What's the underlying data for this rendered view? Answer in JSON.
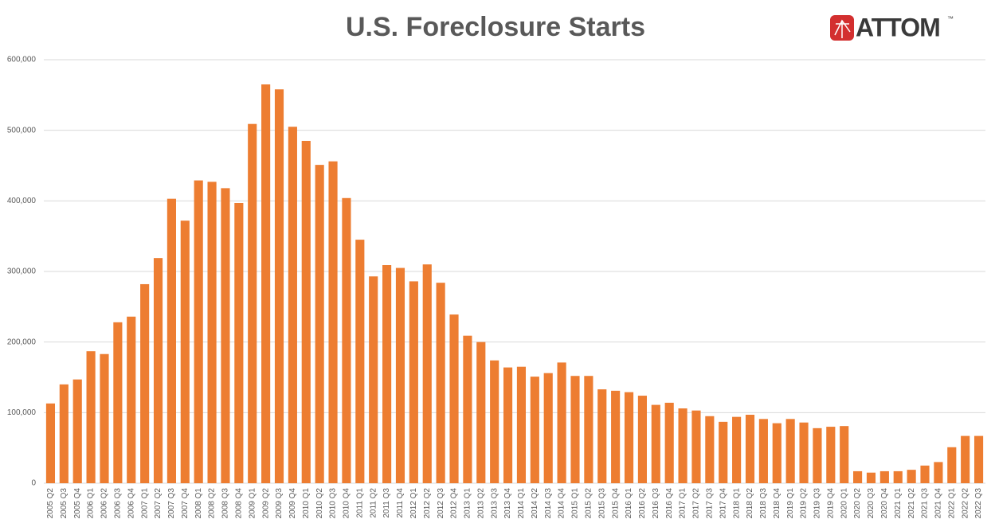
{
  "chart_data": {
    "type": "bar",
    "title": "U.S. Foreclosure Starts",
    "categories": [
      "2005 Q2",
      "2005 Q3",
      "2005 Q4",
      "2006 Q1",
      "2006 Q2",
      "2006 Q3",
      "2006 Q4",
      "2007 Q1",
      "2007 Q2",
      "2007 Q3",
      "2007 Q4",
      "2008 Q1",
      "2008 Q2",
      "2008 Q3",
      "2008 Q4",
      "2009 Q1",
      "2009 Q2",
      "2009 Q3",
      "2009 Q4",
      "2010 Q1",
      "2010 Q2",
      "2010 Q3",
      "2010 Q4",
      "2011 Q1",
      "2011 Q2",
      "2011 Q3",
      "2011 Q4",
      "2012 Q1",
      "2012 Q2",
      "2012 Q3",
      "2012 Q4",
      "2013 Q1",
      "2013 Q2",
      "2013 Q3",
      "2013 Q4",
      "2014 Q1",
      "2014 Q2",
      "2014 Q3",
      "2014 Q4",
      "2015 Q1",
      "2015 Q2",
      "2015 Q3",
      "2015 Q4",
      "2016 Q1",
      "2016 Q2",
      "2016 Q3",
      "2016 Q4",
      "2017 Q1",
      "2017 Q2",
      "2017 Q3",
      "2017 Q4",
      "2018 Q1",
      "2018 Q2",
      "2018 Q3",
      "2018 Q4",
      "2019 Q1",
      "2019 Q2",
      "2019 Q3",
      "2019 Q4",
      "2020 Q1",
      "2020 Q2",
      "2020 Q3",
      "2020 Q4",
      "2021 Q1",
      "2021 Q2",
      "2021 Q3",
      "2021 Q4",
      "2022 Q1",
      "2022 Q2",
      "2022 Q3"
    ],
    "values": [
      113000,
      140000,
      147000,
      187000,
      183000,
      228000,
      236000,
      282000,
      319000,
      403000,
      372000,
      429000,
      427000,
      418000,
      397000,
      509000,
      565000,
      558000,
      505000,
      485000,
      451000,
      456000,
      404000,
      345000,
      293000,
      309000,
      305000,
      286000,
      310000,
      284000,
      239000,
      209000,
      200000,
      174000,
      164000,
      165000,
      151000,
      156000,
      171000,
      152000,
      152000,
      133000,
      131000,
      129000,
      124000,
      111000,
      114000,
      106000,
      103000,
      95000,
      87000,
      94000,
      97000,
      91000,
      85000,
      91000,
      86000,
      78000,
      80000,
      81000,
      17000,
      15000,
      17000,
      17000,
      19000,
      25000,
      30000,
      51000,
      67000,
      67000
    ],
    "color": "#ed7d31",
    "ylim": [
      0,
      600000
    ],
    "yticks": [
      0,
      {
        "value": 100000,
        "label": "100,000"
      },
      {
        "value": 200000,
        "label": "200,000"
      },
      {
        "value": 300000,
        "label": "300,000"
      },
      {
        "value": 400000,
        "label": "400,000"
      },
      {
        "value": 500000,
        "label": "500,000"
      },
      {
        "value": 600000,
        "label": "600,000"
      }
    ],
    "grid": true
  },
  "logo": {
    "text": "ATTOM",
    "mark": "™"
  }
}
